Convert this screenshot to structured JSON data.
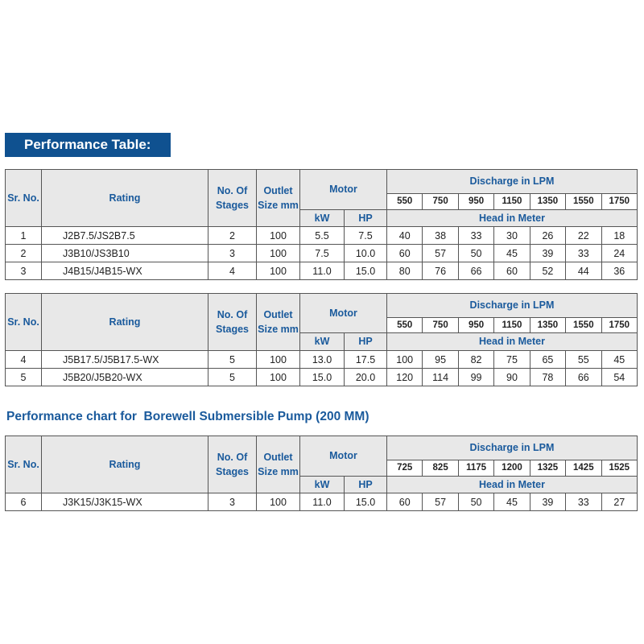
{
  "banner": "Performance Table:",
  "chart_title": "Performance chart for  Borewell Submersible Pump (200 MM)",
  "headers": {
    "sr": "Sr. No.",
    "rating": "Rating",
    "stages": "No. Of Stages",
    "outlet": "Outlet Size mm",
    "motor": "Motor",
    "kw": "kW",
    "hp": "HP",
    "discharge": "Discharge in LPM",
    "head": "Head in Meter"
  },
  "tables": [
    {
      "lpm": [
        "550",
        "750",
        "950",
        "1150",
        "1350",
        "1550",
        "1750"
      ],
      "rows": [
        {
          "sr": "1",
          "rating": "J2B7.5/JS2B7.5",
          "stages": "2",
          "outlet": "100",
          "kw": "5.5",
          "hp": "7.5",
          "head": [
            "40",
            "38",
            "33",
            "30",
            "26",
            "22",
            "18"
          ]
        },
        {
          "sr": "2",
          "rating": "J3B10/JS3B10",
          "stages": "3",
          "outlet": "100",
          "kw": "7.5",
          "hp": "10.0",
          "head": [
            "60",
            "57",
            "50",
            "45",
            "39",
            "33",
            "24"
          ]
        },
        {
          "sr": "3",
          "rating": "J4B15/J4B15-WX",
          "stages": "4",
          "outlet": "100",
          "kw": "11.0",
          "hp": "15.0",
          "head": [
            "80",
            "76",
            "66",
            "60",
            "52",
            "44",
            "36"
          ]
        }
      ]
    },
    {
      "lpm": [
        "550",
        "750",
        "950",
        "1150",
        "1350",
        "1550",
        "1750"
      ],
      "rows": [
        {
          "sr": "4",
          "rating": "J5B17.5/J5B17.5-WX",
          "stages": "5",
          "outlet": "100",
          "kw": "13.0",
          "hp": "17.5",
          "head": [
            "100",
            "95",
            "82",
            "75",
            "65",
            "55",
            "45"
          ]
        },
        {
          "sr": "5",
          "rating": "J5B20/J5B20-WX",
          "stages": "5",
          "outlet": "100",
          "kw": "15.0",
          "hp": "20.0",
          "head": [
            "120",
            "114",
            "99",
            "90",
            "78",
            "66",
            "54"
          ]
        }
      ]
    },
    {
      "lpm": [
        "725",
        "825",
        "1175",
        "1200",
        "1325",
        "1425",
        "1525"
      ],
      "rows": [
        {
          "sr": "6",
          "rating": "J3K15/J3K15-WX",
          "stages": "3",
          "outlet": "100",
          "kw": "11.0",
          "hp": "15.0",
          "head": [
            "60",
            "57",
            "50",
            "45",
            "39",
            "33",
            "27"
          ]
        }
      ]
    }
  ]
}
